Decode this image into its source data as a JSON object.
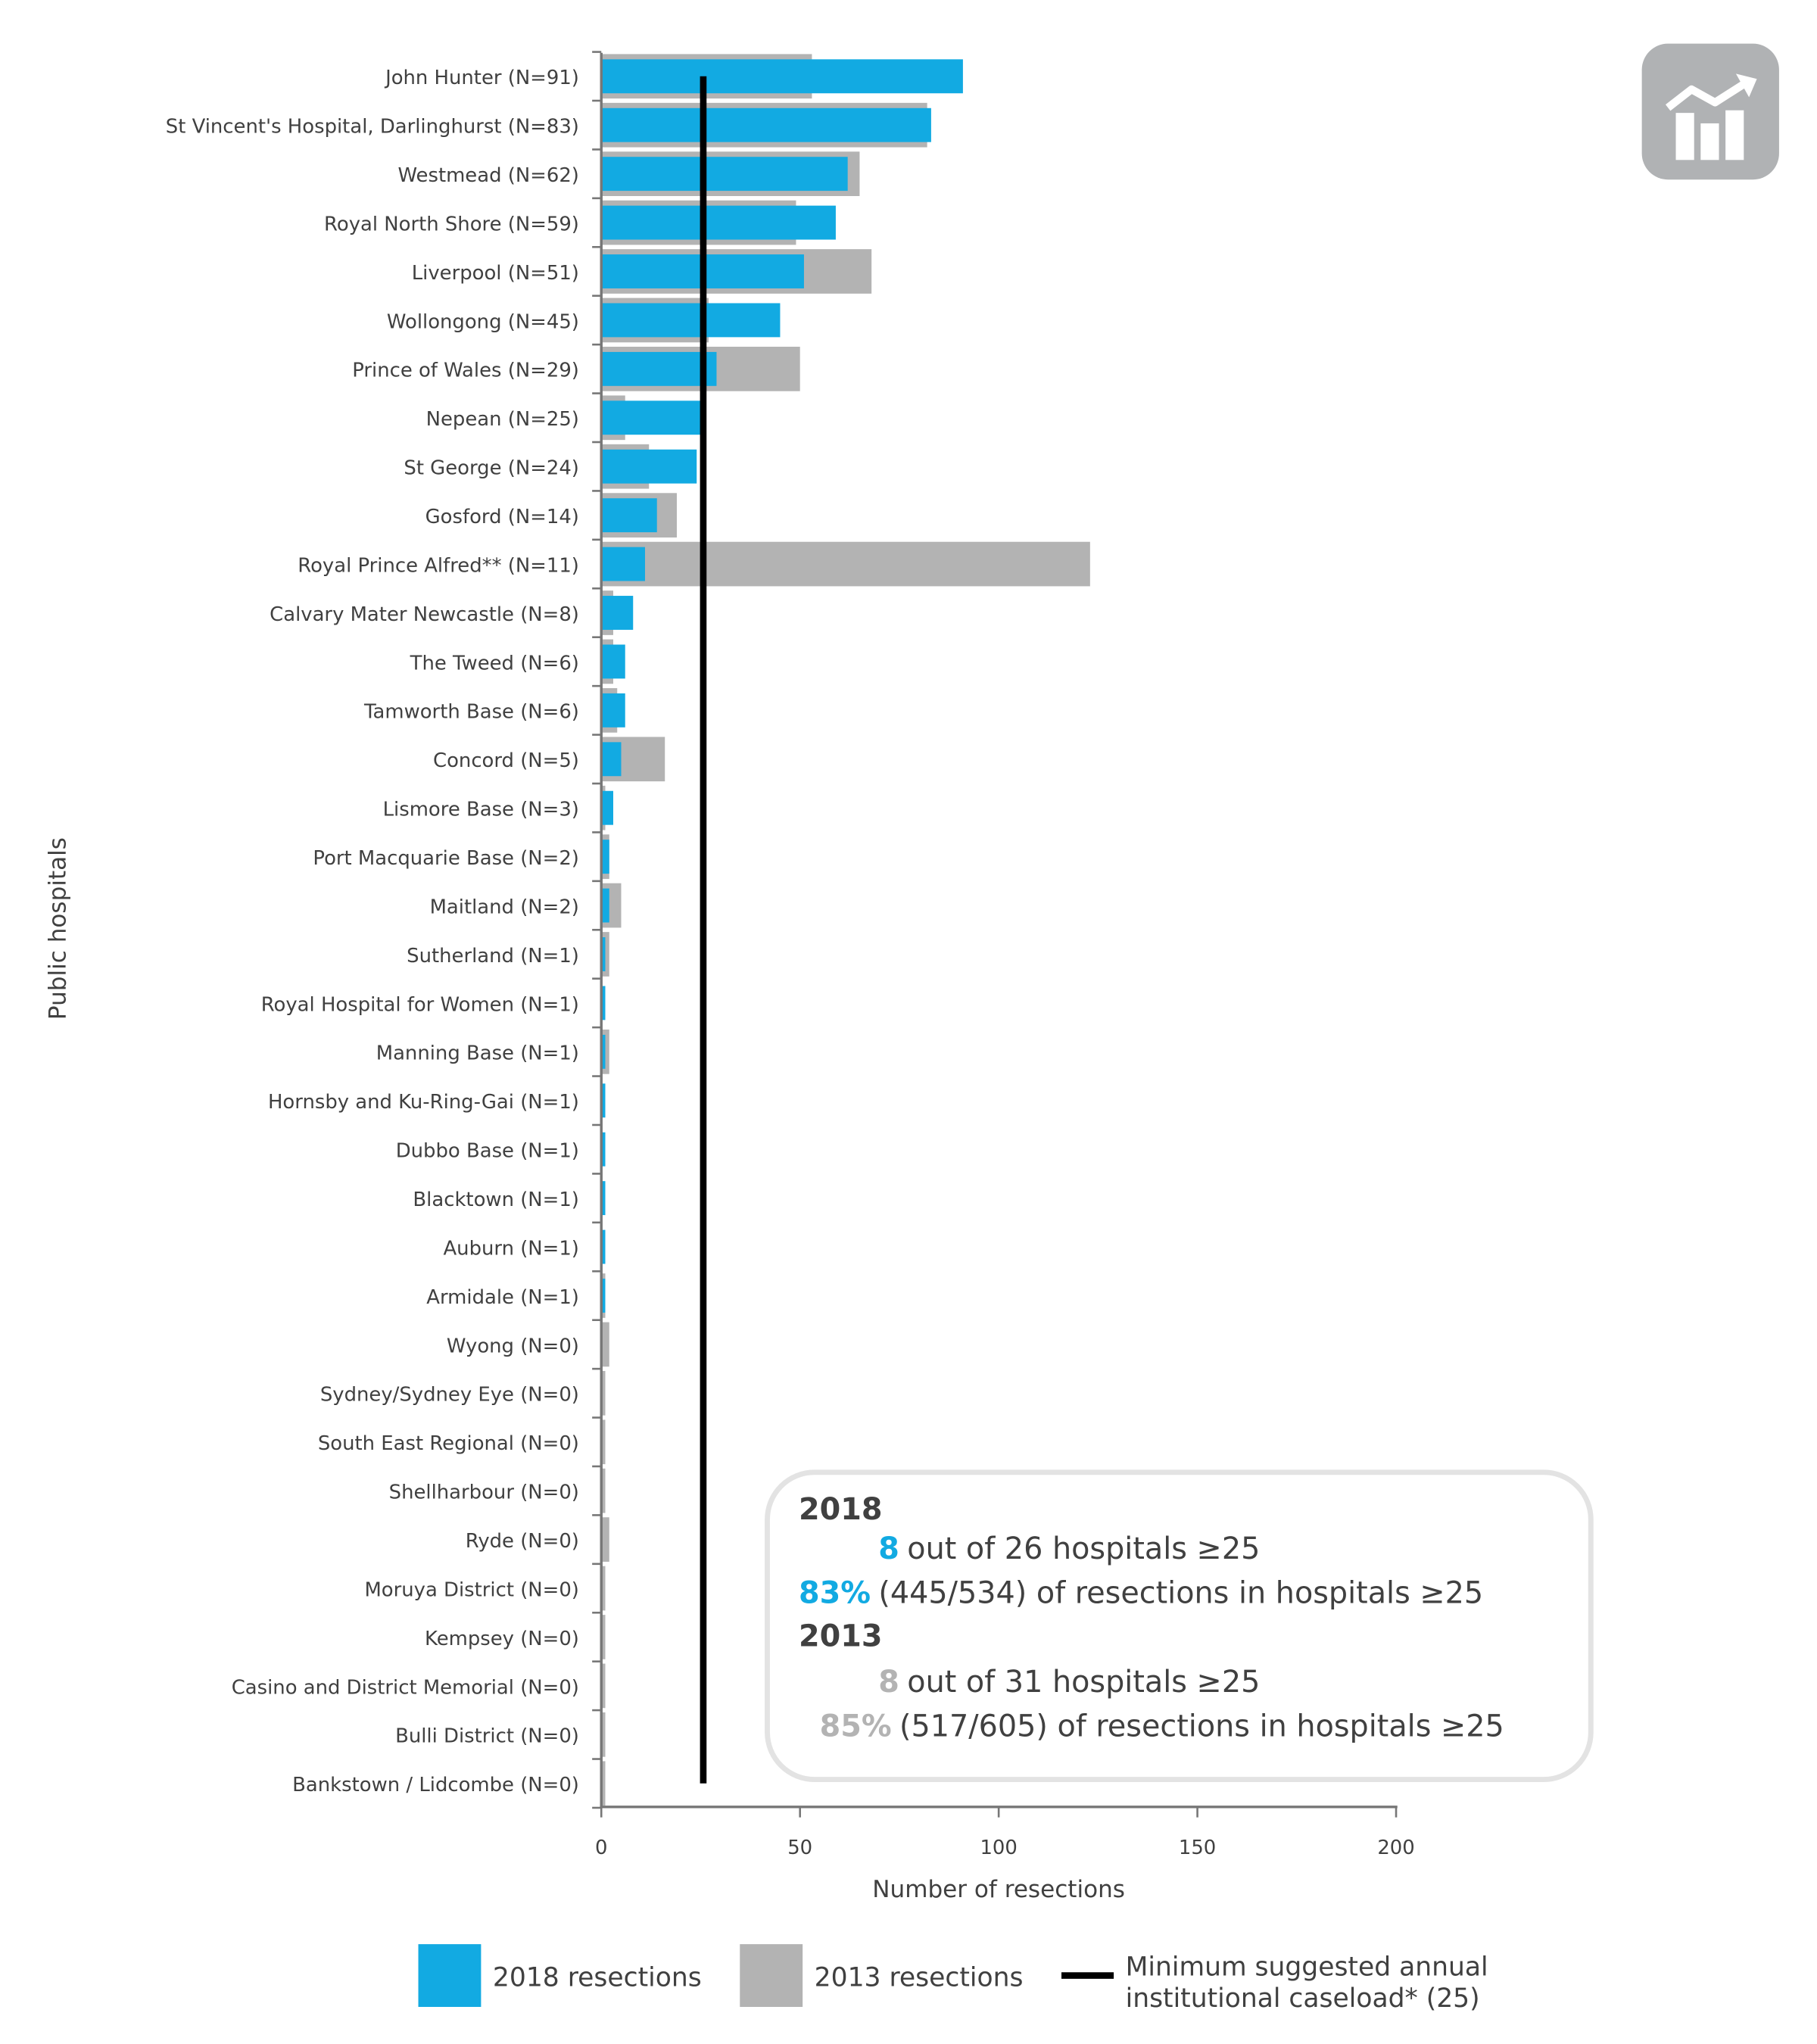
{
  "chart_data": {
    "type": "bar",
    "orientation": "horizontal",
    "xlabel": "Number of resections",
    "ylabel": "Public hospitals",
    "xlim": [
      0,
      200
    ],
    "xticks": [
      "0",
      "50",
      "100",
      "150",
      "200"
    ],
    "grid": false,
    "categories": [
      "John Hunter (N=91)",
      "St Vincent's Hospital, Darlinghurst (N=83)",
      "Westmead (N=62)",
      "Royal North Shore (N=59)",
      "Liverpool (N=51)",
      "Wollongong (N=45)",
      "Prince of Wales (N=29)",
      "Nepean (N=25)",
      "St George (N=24)",
      "Gosford (N=14)",
      "Royal Prince Alfred** (N=11)",
      "Calvary Mater Newcastle (N=8)",
      "The Tweed (N=6)",
      "Tamworth Base (N=6)",
      "Concord (N=5)",
      "Lismore Base (N=3)",
      "Port Macquarie Base (N=2)",
      "Maitland (N=2)",
      "Sutherland (N=1)",
      "Royal Hospital for Women (N=1)",
      "Manning Base (N=1)",
      "Hornsby and Ku-Ring-Gai (N=1)",
      "Dubbo Base (N=1)",
      "Blacktown (N=1)",
      "Auburn (N=1)",
      "Armidale (N=1)",
      "Wyong (N=0)",
      "Sydney/Sydney Eye (N=0)",
      "South East Regional (N=0)",
      "Shellharbour (N=0)",
      "Ryde (N=0)",
      "Moruya District (N=0)",
      "Kempsey (N=0)",
      "Casino and District Memorial (N=0)",
      "Bulli District (N=0)",
      "Bankstown / Lidcombe (N=0)"
    ],
    "series": [
      {
        "name": "2018 resections",
        "color": "#12aae2",
        "values": [
          91,
          83,
          62,
          59,
          51,
          45,
          29,
          25,
          24,
          14,
          11,
          8,
          6,
          6,
          5,
          3,
          2,
          2,
          1,
          1,
          1,
          1,
          1,
          1,
          1,
          1,
          0,
          0,
          0,
          0,
          0,
          0,
          0,
          0,
          0,
          0
        ]
      },
      {
        "name": "2013 resections",
        "color": "#b3b3b3",
        "values": [
          53,
          82,
          65,
          49,
          68,
          27,
          50,
          6,
          12,
          19,
          123,
          3,
          3,
          4,
          16,
          1,
          2,
          5,
          2,
          0,
          2,
          0,
          0,
          0,
          0,
          1,
          2,
          1,
          1,
          1,
          2,
          1,
          1,
          1,
          1,
          1
        ]
      }
    ],
    "reference_line": {
      "name": "Minimum suggested annual institutional caseload* (25)",
      "value": 25,
      "color": "#000000"
    },
    "legend": {
      "placement": "bottom",
      "items": [
        "2018 resections",
        "2013 resections",
        "Minimum suggested annual",
        "institutional caseload* (25)"
      ]
    },
    "annotation": {
      "year1": "2018",
      "y1_num": "8",
      "y1_text": "out of 26 hospitals ≥25",
      "y1_pct": "83%",
      "y1_pct_text": "(445/534) of resections in hospitals ≥25",
      "year2": "2013",
      "y2_num": "8",
      "y2_text": "out of 31 hospitals ≥25",
      "y2_pct": "85%",
      "y2_pct_text": "(517/605) of resections in hospitals ≥25"
    }
  },
  "icon": "chart-trend-icon"
}
